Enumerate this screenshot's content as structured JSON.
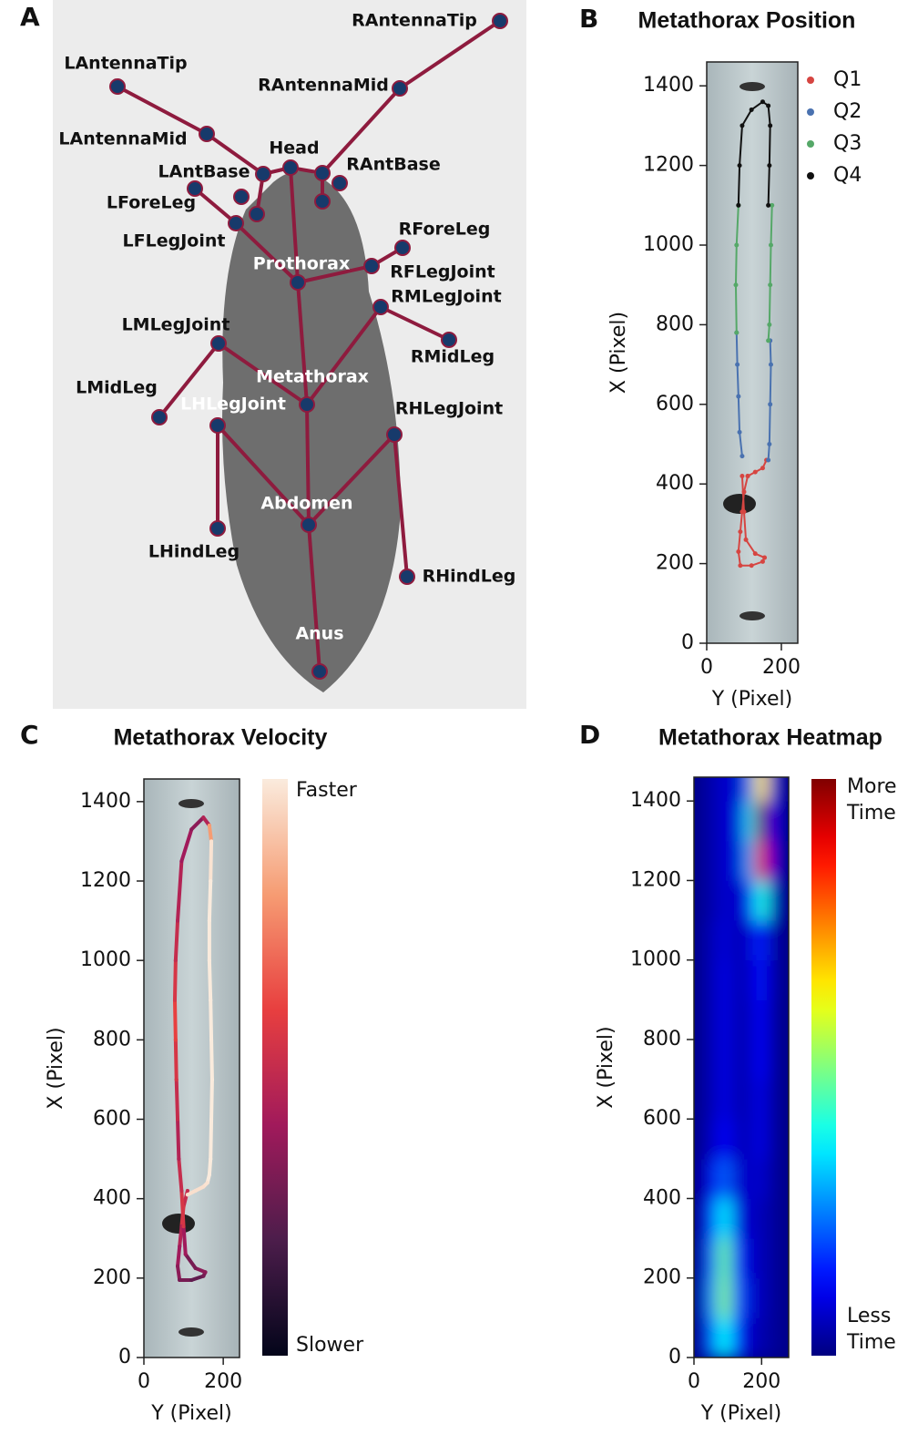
{
  "panel_a": {
    "letter": "A",
    "nodes": [
      "RAntennaTip",
      "LAntennaTip",
      "RAntennaMid",
      "LAntennaMid",
      "Head",
      "LAntBase",
      "RAntBase",
      "LForeLeg",
      "LFLegJoint",
      "RForeLeg",
      "Prothorax",
      "RFLegJoint",
      "RMLegJoint",
      "RMidLeg",
      "LMLegJoint",
      "Metathorax",
      "LMidLeg",
      "LHLegJoint",
      "RHLegJoint",
      "Abdomen",
      "LHindLeg",
      "RHindLeg",
      "Anus"
    ]
  },
  "chart_data": [
    {
      "type": "scatter",
      "letter": "B",
      "title": "Metathorax Position",
      "xlabel": "Y (Pixel)",
      "ylabel": "X (Pixel)",
      "xlim": [
        0,
        244
      ],
      "ylim": [
        0,
        1460
      ],
      "xticks": [
        0,
        200
      ],
      "yticks": [
        0,
        200,
        400,
        600,
        800,
        1000,
        1200,
        1400
      ],
      "series": [
        {
          "name": "Q1",
          "color": "#d64541",
          "x": [
            110,
            100,
            95,
            90,
            85,
            90,
            120,
            150,
            155,
            130,
            105,
            100,
            95,
            null,
            160,
            150,
            130,
            110
          ],
          "y": [
            420,
            380,
            330,
            280,
            230,
            195,
            195,
            205,
            215,
            225,
            260,
            330,
            420,
            null,
            460,
            440,
            430,
            420
          ]
        },
        {
          "name": "Q2",
          "color": "#4a72b0",
          "x": [
            95,
            88,
            85,
            82,
            80,
            null,
            170,
            172,
            170,
            168,
            165
          ],
          "y": [
            470,
            530,
            620,
            700,
            780,
            null,
            760,
            700,
            600,
            500,
            460
          ]
        },
        {
          "name": "Q3",
          "color": "#55a868",
          "x": [
            80,
            78,
            80,
            85,
            null,
            175,
            172,
            170,
            168,
            165
          ],
          "y": [
            780,
            900,
            1000,
            1100,
            null,
            1100,
            1000,
            900,
            800,
            760
          ]
        },
        {
          "name": "Q4",
          "color": "#111111",
          "x": [
            85,
            88,
            95,
            120,
            150,
            165,
            170,
            168,
            165
          ],
          "y": [
            1100,
            1200,
            1300,
            1340,
            1360,
            1350,
            1300,
            1200,
            1100
          ]
        }
      ]
    },
    {
      "type": "line",
      "letter": "C",
      "title": "Metathorax Velocity",
      "xlabel": "Y (Pixel)",
      "ylabel": "X (Pixel)",
      "xlim": [
        0,
        241
      ],
      "ylim": [
        0,
        1457
      ],
      "xticks": [
        0,
        200
      ],
      "yticks": [
        0,
        200,
        400,
        600,
        800,
        1000,
        1200,
        1400
      ],
      "x": [
        110,
        100,
        95,
        90,
        85,
        90,
        120,
        150,
        155,
        130,
        105,
        100,
        95,
        88,
        85,
        82,
        80,
        78,
        80,
        85,
        95,
        120,
        150,
        165,
        170,
        168,
        165,
        165,
        168,
        170,
        172,
        170,
        168,
        165,
        160,
        150,
        130,
        110
      ],
      "y": [
        420,
        380,
        330,
        280,
        230,
        195,
        195,
        205,
        215,
        225,
        260,
        330,
        420,
        500,
        600,
        700,
        800,
        900,
        1000,
        1100,
        1250,
        1330,
        1360,
        1340,
        1300,
        1200,
        1100,
        1000,
        900,
        800,
        700,
        600,
        500,
        460,
        440,
        430,
        420,
        410
      ],
      "speed": [
        0.5,
        0.55,
        0.45,
        0.4,
        0.35,
        0.3,
        0.25,
        0.3,
        0.35,
        0.3,
        0.4,
        0.55,
        0.5,
        0.45,
        0.5,
        0.55,
        0.6,
        0.55,
        0.5,
        0.45,
        0.4,
        0.35,
        0.45,
        0.8,
        0.98,
        1,
        1,
        1,
        1,
        1,
        1,
        1,
        1,
        1,
        0.98,
        0.97,
        0.97,
        0.97
      ],
      "clim": [
        0,
        1
      ],
      "colormap": [
        "#03051a",
        "#4c1d4b",
        "#a11a5b",
        "#e83f3f",
        "#f69c73",
        "#faebdd"
      ],
      "colorbar_labels": [
        "Faster",
        "Slower"
      ]
    },
    {
      "type": "heatmap",
      "letter": "D",
      "title": "Metathorax Heatmap",
      "xlabel": "Y (Pixel)",
      "ylabel": "X (Pixel)",
      "xlim": [
        0,
        280
      ],
      "ylim": [
        0,
        1460
      ],
      "xticks": [
        0,
        200
      ],
      "yticks": [
        0,
        200,
        400,
        600,
        800,
        1000,
        1200,
        1400
      ],
      "xbins": [
        0,
        30,
        70,
        110,
        150,
        180,
        220,
        250,
        280
      ],
      "ybins": [
        0,
        100,
        200,
        300,
        400,
        500,
        600,
        700,
        800,
        900,
        1000,
        1100,
        1200,
        1300,
        1400,
        1500
      ],
      "z": [
        [
          0.02,
          0.2,
          0.38,
          0.15,
          0.06,
          0.05,
          0.02,
          0.02
        ],
        [
          0.02,
          0.25,
          0.5,
          0.2,
          0.08,
          0.06,
          0.02,
          0.02
        ],
        [
          0.02,
          0.22,
          0.48,
          0.16,
          0.07,
          0.06,
          0.02,
          0.02
        ],
        [
          0.02,
          0.18,
          0.36,
          0.1,
          0.06,
          0.06,
          0.02,
          0.02
        ],
        [
          0.02,
          0.1,
          0.22,
          0.08,
          0.06,
          0.08,
          0.02,
          0.02
        ],
        [
          0.02,
          0.06,
          0.12,
          0.06,
          0.06,
          0.1,
          0.02,
          0.02
        ],
        [
          0.02,
          0.05,
          0.1,
          0.05,
          0.06,
          0.1,
          0.02,
          0.02
        ],
        [
          0.02,
          0.05,
          0.1,
          0.05,
          0.06,
          0.12,
          0.02,
          0.02
        ],
        [
          0.02,
          0.05,
          0.1,
          0.05,
          0.06,
          0.12,
          0.02,
          0.02
        ],
        [
          0.02,
          0.05,
          0.1,
          0.05,
          0.07,
          0.14,
          0.03,
          0.02
        ],
        [
          0.02,
          0.05,
          0.09,
          0.05,
          0.08,
          0.16,
          0.03,
          0.02
        ],
        [
          0.02,
          0.04,
          0.08,
          0.06,
          0.15,
          0.4,
          0.06,
          0.02
        ],
        [
          0.02,
          0.04,
          0.08,
          0.08,
          0.3,
          0.9,
          0.1,
          0.02
        ],
        [
          0.02,
          0.04,
          0.08,
          0.08,
          0.35,
          1.0,
          0.12,
          0.02
        ],
        [
          0.02,
          0.04,
          0.08,
          0.07,
          0.25,
          0.65,
          0.1,
          0.02
        ]
      ],
      "clim": [
        0,
        1
      ],
      "colorbar_labels": [
        "More Time",
        "Less Time"
      ]
    }
  ]
}
